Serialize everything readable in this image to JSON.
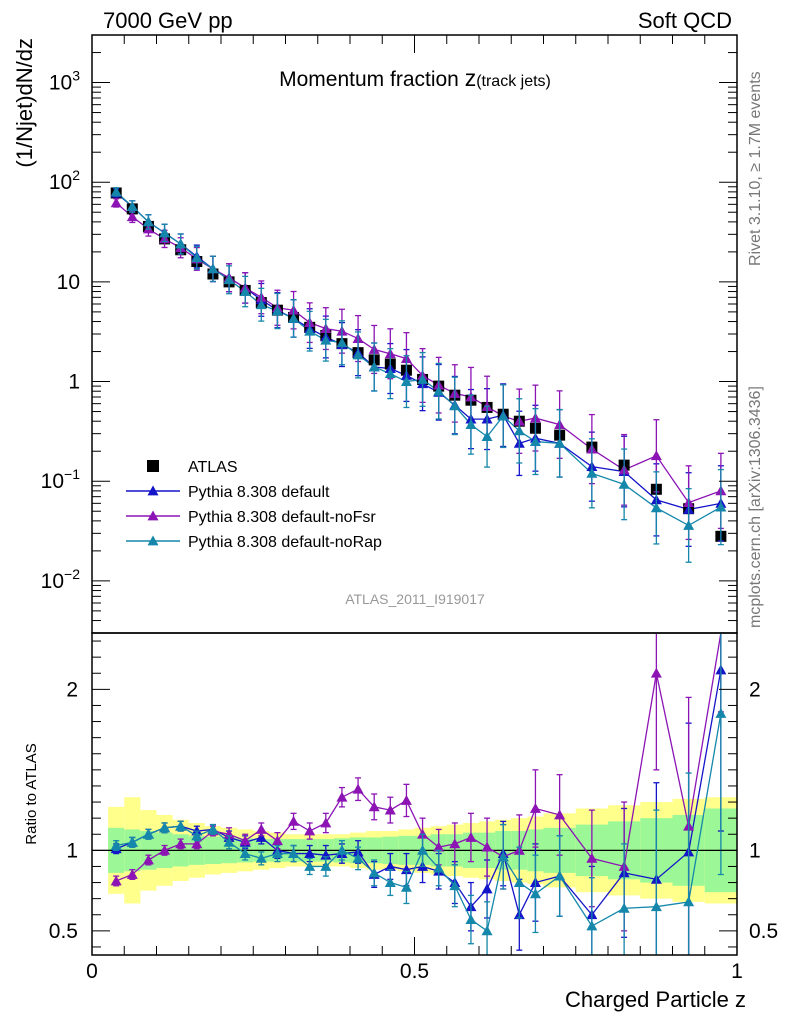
{
  "header": {
    "left_label": "7000 GeV pp",
    "right_label": "Soft QCD"
  },
  "side_labels": {
    "rivet": "Rivet 3.1.10, ≥ 1.7M events",
    "mcplots": "mcplots.cern.ch [arXiv:1306.3436]"
  },
  "chart_data": [
    {
      "type": "scatter",
      "panel": "main",
      "title_main": "Momentum fraction ",
      "title_var": "z",
      "title_sub": "(track jets)",
      "ylabel": "(1/Njet)dN/dz",
      "xlabel": "Charged Particle z",
      "xlim": [
        0,
        1
      ],
      "ylim": [
        0.003,
        3000
      ],
      "yscale": "log",
      "yticks": [
        {
          "value": 1000,
          "base": "10",
          "exp": "3"
        },
        {
          "value": 100,
          "base": "10",
          "exp": "2"
        },
        {
          "value": 10,
          "base": "10",
          "exp": ""
        },
        {
          "value": 1,
          "base": "1",
          "exp": ""
        },
        {
          "value": 0.1,
          "base": "10",
          "exp": "−1"
        },
        {
          "value": 0.01,
          "base": "10",
          "exp": "−2"
        }
      ],
      "watermark": "ATLAS_2011_I919017",
      "legend_position": "bottom-left",
      "legend": [
        {
          "label": "ATLAS",
          "marker": "square"
        },
        {
          "label": "Pythia 8.308 default",
          "marker": "triangle"
        },
        {
          "label": "Pythia 8.308 default-noFsr",
          "marker": "triangle"
        },
        {
          "label": "Pythia 8.308 default-noRap",
          "marker": "triangle"
        }
      ],
      "x": [
        0.0375,
        0.0625,
        0.0875,
        0.1125,
        0.1375,
        0.1625,
        0.1875,
        0.2125,
        0.2375,
        0.2625,
        0.2875,
        0.3125,
        0.3375,
        0.3625,
        0.3875,
        0.4125,
        0.4375,
        0.4625,
        0.4875,
        0.5125,
        0.5375,
        0.5625,
        0.5875,
        0.6125,
        0.6375,
        0.6625,
        0.6875,
        0.725,
        0.775,
        0.825,
        0.875,
        0.925,
        0.975
      ],
      "series": [
        {
          "name": "ATLAS",
          "color": "#000000",
          "marker": "square",
          "values": [
            78,
            54,
            36,
            27,
            21,
            16,
            12,
            10,
            8.2,
            6.2,
            5.2,
            4.4,
            3.5,
            2.9,
            2.4,
            1.95,
            1.65,
            1.5,
            1.3,
            1.05,
            0.9,
            0.73,
            0.65,
            0.55,
            0.47,
            0.4,
            0.34,
            0.29,
            0.22,
            0.145,
            0.083,
            0.053,
            0.028
          ]
        },
        {
          "name": "Pythia 8.308 default",
          "color": "#1414c8",
          "marker": "triangle",
          "values": [
            78,
            57,
            40,
            31,
            24,
            18,
            13.5,
            11,
            8.7,
            6.6,
            5.2,
            4.3,
            3.4,
            2.8,
            2.35,
            1.95,
            1.4,
            1.35,
            1.15,
            0.95,
            0.78,
            0.58,
            0.42,
            0.42,
            0.46,
            0.24,
            0.27,
            0.24,
            0.14,
            0.125,
            0.065,
            0.052,
            0.06
          ]
        },
        {
          "name": "Pythia 8.308 default-noFsr",
          "color": "#8c14b4",
          "marker": "triangle",
          "values": [
            62,
            45,
            34,
            27,
            22,
            17,
            13.5,
            11,
            8.7,
            7.0,
            5.5,
            5.2,
            3.9,
            3.4,
            3.2,
            2.7,
            2.1,
            1.9,
            1.7,
            1.15,
            0.92,
            0.76,
            0.7,
            0.56,
            0.45,
            0.4,
            0.43,
            0.37,
            0.21,
            0.13,
            0.18,
            0.061,
            0.08
          ]
        },
        {
          "name": "Pythia 8.308 default-noRap",
          "color": "#1487aa",
          "marker": "triangle",
          "values": [
            80,
            57,
            40,
            31,
            24,
            17.5,
            13.5,
            10.5,
            8.0,
            5.9,
            5.1,
            4.3,
            3.2,
            2.6,
            2.45,
            1.85,
            1.4,
            1.2,
            1.0,
            1.05,
            0.8,
            0.57,
            0.37,
            0.28,
            0.45,
            0.32,
            0.25,
            0.24,
            0.12,
            0.093,
            0.054,
            0.036,
            0.055
          ]
        }
      ]
    },
    {
      "type": "line",
      "panel": "ratio",
      "ylabel": "Ratio to ATLAS",
      "ylim": [
        0.35,
        2.35
      ],
      "yticks": [
        {
          "value": 0.5,
          "label": "0.5"
        },
        {
          "value": 1,
          "label": "1"
        },
        {
          "value": 2,
          "label": "2"
        }
      ],
      "xticks": [
        {
          "value": 0,
          "label": "0"
        },
        {
          "value": 0.5,
          "label": "0.5"
        },
        {
          "value": 1,
          "label": "1"
        }
      ],
      "bin_edges": [
        0.025,
        0.05,
        0.075,
        0.1,
        0.125,
        0.15,
        0.175,
        0.2,
        0.225,
        0.25,
        0.275,
        0.3,
        0.325,
        0.35,
        0.375,
        0.4,
        0.425,
        0.45,
        0.475,
        0.5,
        0.525,
        0.55,
        0.575,
        0.6,
        0.625,
        0.65,
        0.675,
        0.7,
        0.75,
        0.8,
        0.85,
        0.9,
        0.95,
        1.0
      ],
      "band_green": [
        0.14,
        0.13,
        0.12,
        0.11,
        0.1,
        0.09,
        0.085,
        0.08,
        0.075,
        0.07,
        0.07,
        0.07,
        0.07,
        0.07,
        0.075,
        0.08,
        0.08,
        0.085,
        0.09,
        0.09,
        0.1,
        0.1,
        0.11,
        0.11,
        0.12,
        0.12,
        0.13,
        0.14,
        0.16,
        0.18,
        0.2,
        0.22,
        0.26
      ],
      "band_yellow": [
        0.27,
        0.33,
        0.25,
        0.22,
        0.19,
        0.17,
        0.15,
        0.14,
        0.13,
        0.12,
        0.11,
        0.1,
        0.1,
        0.1,
        0.1,
        0.11,
        0.12,
        0.12,
        0.13,
        0.14,
        0.15,
        0.16,
        0.17,
        0.18,
        0.19,
        0.2,
        0.21,
        0.23,
        0.26,
        0.28,
        0.3,
        0.32,
        0.33
      ],
      "series": [
        {
          "name": "Pythia 8.308 default",
          "color": "#1414c8",
          "values": [
            1.01,
            1.05,
            1.1,
            1.14,
            1.15,
            1.12,
            1.13,
            1.08,
            1.05,
            1.08,
            1.0,
            0.98,
            0.98,
            0.97,
            0.98,
            0.99,
            0.85,
            0.9,
            0.88,
            0.9,
            0.87,
            0.8,
            0.65,
            0.76,
            0.98,
            0.6,
            0.8,
            0.84,
            0.6,
            0.86,
            0.82,
            0.99,
            2.12
          ],
          "errors": [
            0.03,
            0.03,
            0.03,
            0.03,
            0.03,
            0.03,
            0.03,
            0.04,
            0.04,
            0.04,
            0.05,
            0.05,
            0.05,
            0.06,
            0.06,
            0.07,
            0.08,
            0.08,
            0.1,
            0.1,
            0.11,
            0.13,
            0.15,
            0.18,
            0.2,
            0.22,
            0.24,
            0.25,
            0.3,
            0.4,
            0.6,
            0.8,
            1.0
          ]
        },
        {
          "name": "Pythia 8.308 default-noFsr",
          "color": "#8c14b4",
          "values": [
            0.81,
            0.85,
            0.94,
            1.0,
            1.04,
            1.04,
            1.12,
            1.1,
            1.06,
            1.13,
            1.06,
            1.18,
            1.12,
            1.17,
            1.33,
            1.38,
            1.27,
            1.25,
            1.31,
            1.1,
            1.02,
            1.04,
            1.08,
            1.02,
            0.96,
            1.0,
            1.26,
            1.22,
            0.95,
            0.9,
            2.1,
            1.15,
            2.86
          ],
          "errors": [
            0.03,
            0.03,
            0.03,
            0.03,
            0.03,
            0.03,
            0.03,
            0.04,
            0.04,
            0.04,
            0.05,
            0.05,
            0.05,
            0.06,
            0.06,
            0.07,
            0.08,
            0.08,
            0.1,
            0.1,
            0.11,
            0.13,
            0.15,
            0.18,
            0.2,
            0.22,
            0.24,
            0.25,
            0.3,
            0.4,
            0.6,
            0.8,
            1.0
          ]
        },
        {
          "name": "Pythia 8.308 default-noRap",
          "color": "#1487aa",
          "values": [
            1.03,
            1.05,
            1.1,
            1.14,
            1.15,
            1.09,
            1.13,
            1.05,
            0.98,
            0.95,
            0.98,
            0.98,
            0.9,
            0.9,
            1.0,
            0.95,
            0.86,
            0.8,
            0.77,
            1.0,
            0.89,
            0.78,
            0.57,
            0.5,
            0.96,
            0.8,
            0.73,
            0.84,
            0.53,
            0.64,
            0.65,
            0.68,
            1.85
          ],
          "errors": [
            0.03,
            0.03,
            0.03,
            0.03,
            0.03,
            0.03,
            0.03,
            0.04,
            0.04,
            0.04,
            0.05,
            0.05,
            0.05,
            0.06,
            0.06,
            0.07,
            0.08,
            0.08,
            0.1,
            0.1,
            0.11,
            0.13,
            0.15,
            0.18,
            0.2,
            0.22,
            0.24,
            0.25,
            0.3,
            0.4,
            0.6,
            0.8,
            1.0
          ]
        }
      ]
    }
  ]
}
